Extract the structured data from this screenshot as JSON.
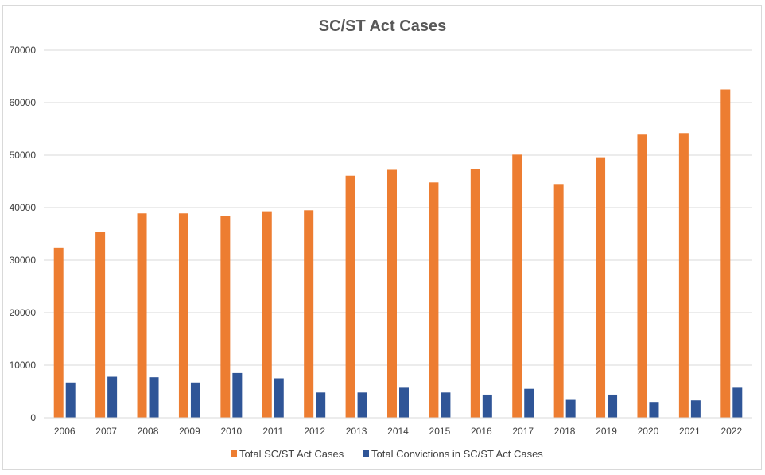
{
  "chart_data": {
    "type": "bar",
    "title": "SC/ST Act Cases",
    "xlabel": "",
    "ylabel": "",
    "ylim": [
      0,
      70000
    ],
    "yticks": [
      0,
      10000,
      20000,
      30000,
      40000,
      50000,
      60000,
      70000
    ],
    "grid": true,
    "legend_position": "bottom",
    "categories": [
      "2006",
      "2007",
      "2008",
      "2009",
      "2010",
      "2011",
      "2012",
      "2013",
      "2014",
      "2015",
      "2016",
      "2017",
      "2018",
      "2019",
      "2020",
      "2021",
      "2022"
    ],
    "series": [
      {
        "name": "Total SC/ST Act Cases",
        "color": "#ed7d31",
        "values": [
          32300,
          35400,
          38900,
          38900,
          38400,
          39300,
          39500,
          46100,
          47200,
          44800,
          47300,
          50100,
          44500,
          49600,
          53900,
          54200,
          62500
        ]
      },
      {
        "name": "Total Convictions in SC/ST Act Cases",
        "color": "#2f5597",
        "values": [
          6700,
          7800,
          7700,
          6700,
          8500,
          7500,
          4800,
          4800,
          5700,
          4800,
          4400,
          5500,
          3400,
          4400,
          3000,
          3300,
          5700
        ]
      }
    ]
  }
}
